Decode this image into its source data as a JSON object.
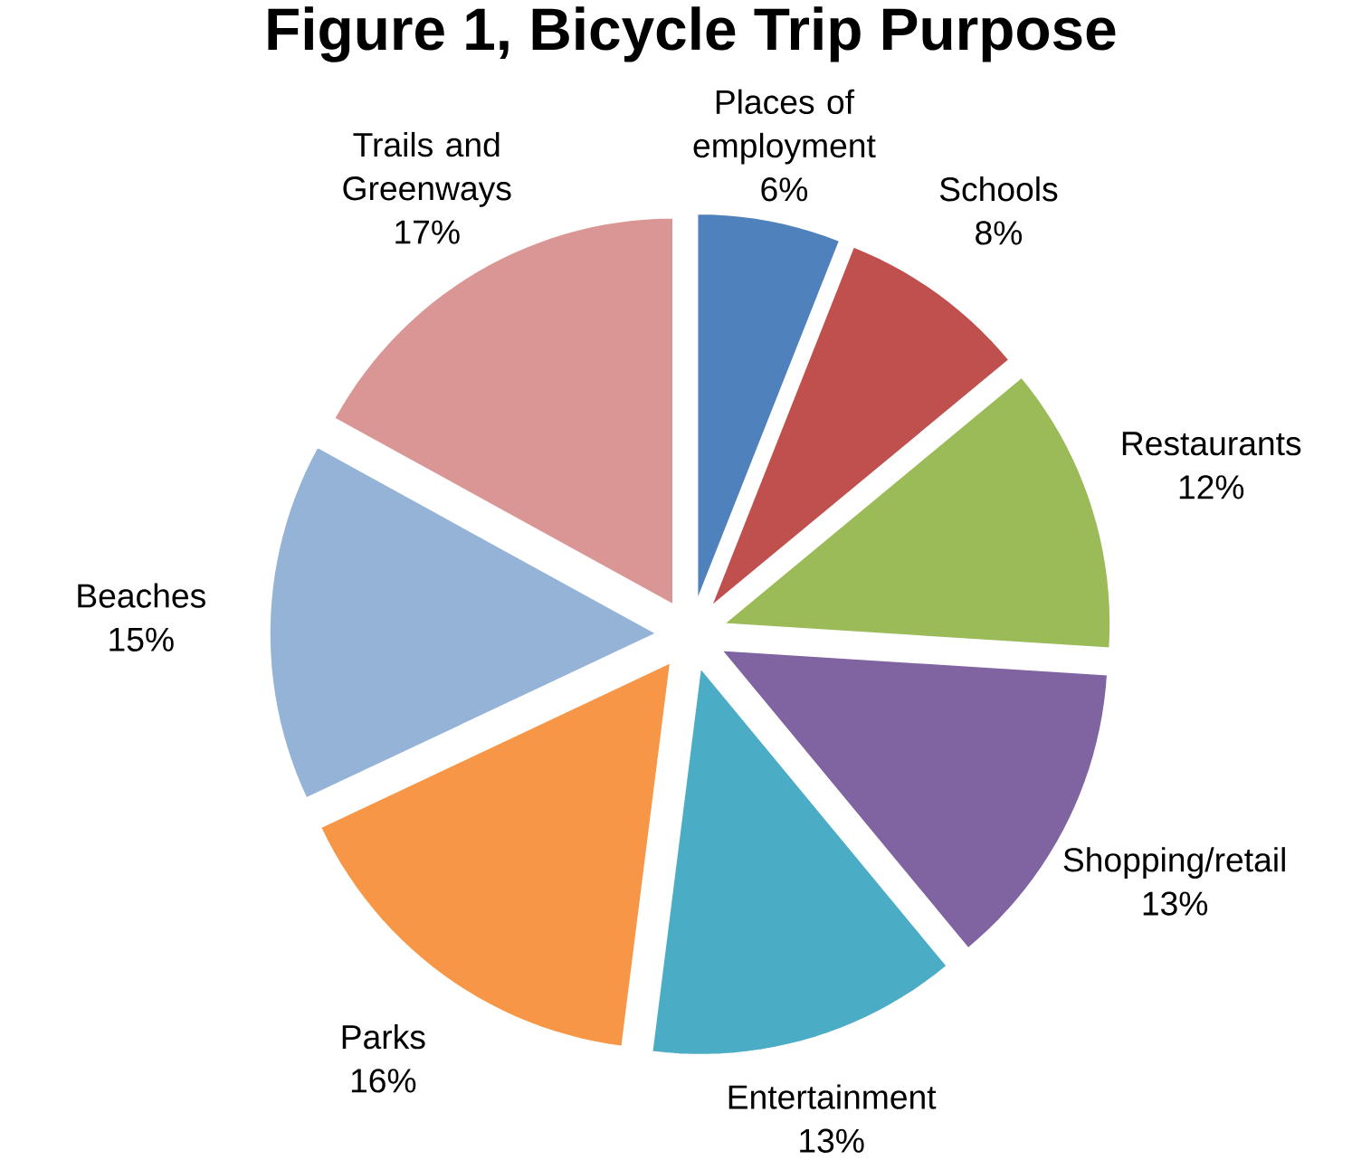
{
  "chart_data": {
    "type": "pie",
    "title": "Figure 1, Bicycle Trip Purpose",
    "categories": [
      "Places of employment",
      "Schools",
      "Restaurants",
      "Shopping/retail",
      "Entertainment",
      "Parks",
      "Beaches",
      "Trails and Greenways"
    ],
    "values": [
      6,
      8,
      12,
      13,
      13,
      16,
      15,
      17
    ],
    "value_labels": [
      "6%",
      "8%",
      "12%",
      "13%",
      "13%",
      "16%",
      "15%",
      "17%"
    ],
    "colors": [
      "#4f81bd",
      "#c0504d",
      "#9bbb59",
      "#8064a2",
      "#4bacc6",
      "#f79646",
      "#95b3d7",
      "#d99694"
    ]
  }
}
